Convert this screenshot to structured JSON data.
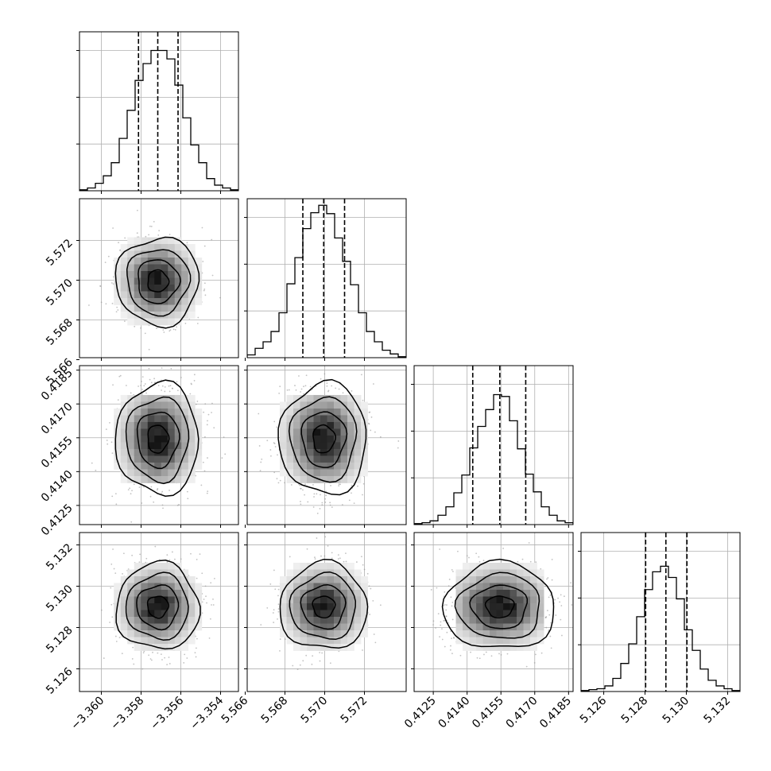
{
  "chart_data": {
    "type": "corner",
    "grid": true,
    "quantiles_dashed": [
      0.16,
      0.5,
      0.84
    ],
    "parameters": [
      {
        "ticks": [
          -3.36,
          -3.358,
          -3.356,
          -3.354
        ],
        "tick_labels": [
          "−3.360",
          "−3.358",
          "−3.356",
          "−3.354"
        ],
        "range": [
          -3.3611,
          -3.3531
        ],
        "quantiles": [
          -3.35813,
          -3.35716,
          -3.35614
        ]
      },
      {
        "ticks": [
          5.566,
          5.568,
          5.57,
          5.572
        ],
        "tick_labels": [
          "5.566",
          "5.568",
          "5.570",
          "5.572"
        ],
        "range": [
          5.5661,
          5.5741
        ],
        "quantiles": [
          5.5689,
          5.56995,
          5.571
        ]
      },
      {
        "ticks": [
          0.4125,
          0.414,
          0.4155,
          0.417,
          0.4185
        ],
        "tick_labels": [
          "0.4125",
          "0.4140",
          "0.4155",
          "0.4170",
          "0.4185"
        ],
        "range": [
          0.41165,
          0.4187
        ],
        "quantiles": [
          0.41425,
          0.41545,
          0.4166
        ]
      },
      {
        "ticks": [
          5.126,
          5.128,
          5.13,
          5.132
        ],
        "tick_labels": [
          "5.126",
          "5.128",
          "5.130",
          "5.132"
        ],
        "range": [
          5.1249,
          5.1326
        ],
        "quantiles": [
          5.12803,
          5.12901,
          5.13003
        ]
      }
    ],
    "marginal_histograms": [
      [
        1,
        3,
        8,
        16,
        30,
        56,
        86,
        118,
        136,
        150,
        150,
        141,
        113,
        78,
        49,
        30,
        13,
        6,
        3,
        1
      ],
      [
        3,
        10,
        17,
        28,
        48,
        79,
        107,
        138,
        155,
        163,
        154,
        128,
        103,
        78,
        48,
        28,
        17,
        8,
        4,
        1
      ],
      [
        1,
        2,
        4,
        10,
        19,
        34,
        53,
        82,
        105,
        123,
        139,
        137,
        111,
        81,
        54,
        35,
        19,
        10,
        4,
        2
      ],
      [
        1,
        2,
        3,
        6,
        14,
        30,
        51,
        80,
        109,
        128,
        134,
        122,
        99,
        66,
        44,
        24,
        12,
        6,
        3,
        1
      ]
    ],
    "histogram_ylim": [
      0,
      170
    ],
    "pair_summary": [
      {
        "row": 1,
        "col": 0,
        "center": [
          -3.35716,
          5.56995
        ],
        "sigma": [
          0.00093,
          0.00102
        ]
      },
      {
        "row": 2,
        "col": 0,
        "center": [
          -3.35716,
          0.41545
        ],
        "sigma": [
          0.00093,
          0.00115
        ]
      },
      {
        "row": 2,
        "col": 1,
        "center": [
          5.56995,
          0.41545
        ],
        "sigma": [
          0.00102,
          0.00115
        ]
      },
      {
        "row": 3,
        "col": 0,
        "center": [
          -3.35716,
          5.12901
        ],
        "sigma": [
          0.00093,
          0.001
        ]
      },
      {
        "row": 3,
        "col": 1,
        "center": [
          5.56995,
          5.12901
        ],
        "sigma": [
          0.00102,
          0.001
        ]
      },
      {
        "row": 3,
        "col": 2,
        "center": [
          0.41545,
          5.12901
        ],
        "sigma": [
          0.00115,
          0.001
        ]
      }
    ],
    "contour_levels_sigma": [
      0.5,
      1.0,
      1.5,
      2.0
    ]
  }
}
